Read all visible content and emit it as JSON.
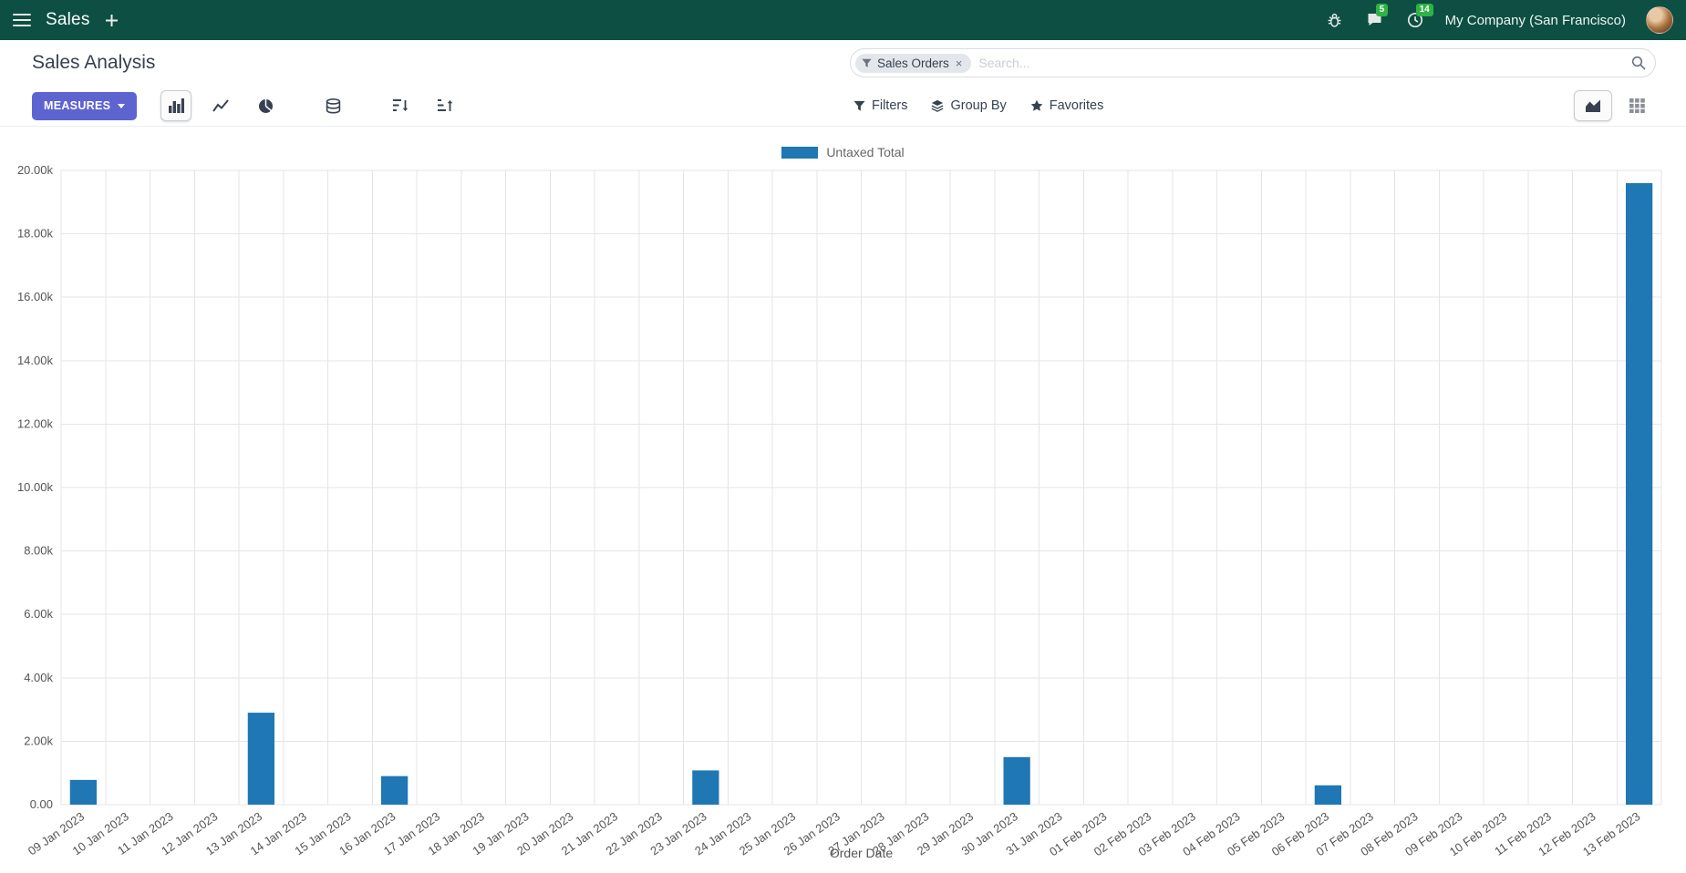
{
  "navbar": {
    "brand": "Sales",
    "company": "My Company (San Francisco)",
    "messages_badge": "5",
    "activities_badge": "14"
  },
  "control_panel": {
    "title": "Sales Analysis",
    "measures_label": "MEASURES",
    "filters_label": "Filters",
    "group_by_label": "Group By",
    "favorites_label": "Favorites",
    "search": {
      "facet": "Sales Orders",
      "facet_remove": "×",
      "placeholder": "Search..."
    }
  },
  "chart_data": {
    "type": "bar",
    "title": "",
    "xlabel": "Order Date",
    "ylabel": "",
    "legend_position": "top-center",
    "grid": true,
    "series": [
      {
        "name": "Untaxed Total",
        "color": "#1f77b4"
      }
    ],
    "categories": [
      "09 Jan 2023",
      "10 Jan 2023",
      "11 Jan 2023",
      "12 Jan 2023",
      "13 Jan 2023",
      "14 Jan 2023",
      "15 Jan 2023",
      "16 Jan 2023",
      "17 Jan 2023",
      "18 Jan 2023",
      "19 Jan 2023",
      "20 Jan 2023",
      "21 Jan 2023",
      "22 Jan 2023",
      "23 Jan 2023",
      "24 Jan 2023",
      "25 Jan 2023",
      "26 Jan 2023",
      "27 Jan 2023",
      "28 Jan 2023",
      "29 Jan 2023",
      "30 Jan 2023",
      "31 Jan 2023",
      "01 Feb 2023",
      "02 Feb 2023",
      "03 Feb 2023",
      "04 Feb 2023",
      "05 Feb 2023",
      "06 Feb 2023",
      "07 Feb 2023",
      "08 Feb 2023",
      "09 Feb 2023",
      "10 Feb 2023",
      "11 Feb 2023",
      "12 Feb 2023",
      "13 Feb 2023"
    ],
    "values": [
      780,
      0,
      0,
      0,
      2900,
      0,
      0,
      900,
      0,
      0,
      0,
      0,
      0,
      0,
      1080,
      0,
      0,
      0,
      0,
      0,
      0,
      1500,
      0,
      0,
      0,
      0,
      0,
      0,
      610,
      0,
      0,
      0,
      0,
      0,
      0,
      19600
    ],
    "ylim": [
      0,
      20000
    ],
    "ytick_step": 2000,
    "ytick_labels": [
      "0.00",
      "2.00k",
      "4.00k",
      "6.00k",
      "8.00k",
      "10.00k",
      "12.00k",
      "14.00k",
      "16.00k",
      "18.00k",
      "20.00k"
    ]
  },
  "colors": {
    "navbar_bg": "#0d4f43",
    "accent": "#5e64cf",
    "bar": "#1f77b4",
    "badge_green": "#2fb344"
  }
}
